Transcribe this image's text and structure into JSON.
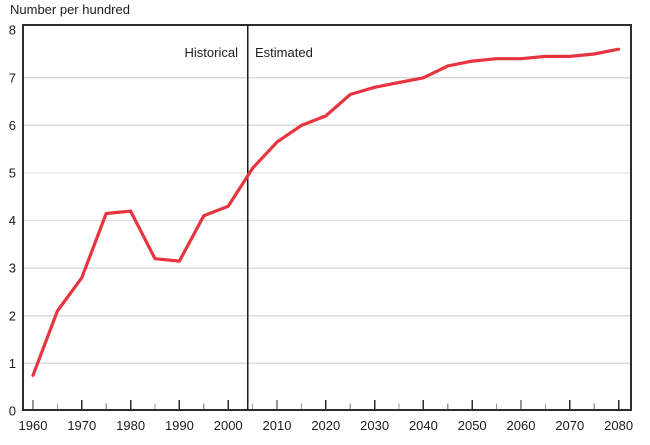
{
  "title": "Number per hundred",
  "annotations": {
    "historical": "Historical",
    "estimated": "Estimated"
  },
  "colors": {
    "line": "#e73540",
    "grid": "#dcdcdc",
    "border": "#2d2d2d",
    "divider": "#1b1b1b",
    "tick_major": "#2d2d2d",
    "tick_minor": "#9b9b9b",
    "text": "#1c1c1c",
    "background": "#ffffff"
  },
  "chart_data": {
    "type": "line",
    "title": "Number per hundred",
    "xlabel": "",
    "ylabel": "Number per hundred",
    "x": [
      1960,
      1965,
      1970,
      1975,
      1980,
      1985,
      1990,
      1995,
      2000,
      2005,
      2010,
      2015,
      2020,
      2025,
      2030,
      2035,
      2040,
      2045,
      2050,
      2055,
      2060,
      2065,
      2070,
      2075,
      2080
    ],
    "series": [
      {
        "name": "Number per hundred",
        "values": [
          0.75,
          2.1,
          2.8,
          4.15,
          4.2,
          3.2,
          3.15,
          4.1,
          4.3,
          5.1,
          5.65,
          6.0,
          6.2,
          6.65,
          6.8,
          6.9,
          7.0,
          7.25,
          7.35,
          7.4,
          7.4,
          7.45,
          7.45,
          7.5,
          7.6
        ]
      }
    ],
    "xlim": [
      1958,
      2083
    ],
    "ylim": [
      0,
      8.13
    ],
    "yticks": [
      0,
      1,
      2,
      3,
      4,
      5,
      6,
      7,
      8
    ],
    "xticks_major": [
      1960,
      1970,
      1980,
      1990,
      2000,
      2010,
      2020,
      2030,
      2040,
      2050,
      2060,
      2070,
      2080
    ],
    "xticks_minor": [
      1965,
      1975,
      1985,
      1995,
      2005,
      2015,
      2025,
      2035,
      2045,
      2055,
      2065,
      2075
    ],
    "grid": "horizontal",
    "legend": "none",
    "divider": {
      "year": 2004,
      "left_label": "Historical",
      "right_label": "Estimated"
    }
  }
}
